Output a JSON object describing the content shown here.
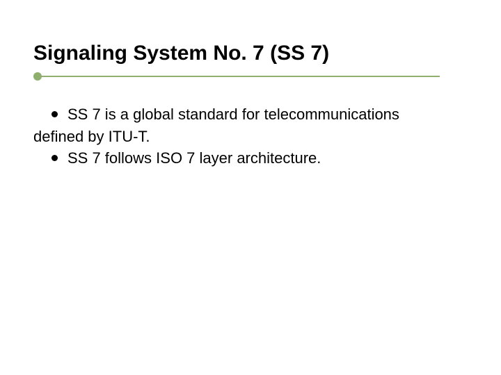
{
  "slide": {
    "title": "Signaling System No. 7 (SS 7)",
    "title_color": "#000000",
    "title_fontsize": 30,
    "underline_color": "#8faf6e",
    "background_color": "#ffffff",
    "bullets": [
      {
        "text_line1": "SS 7 is a global standard for telecommunications",
        "text_line2": "defined by ITU-T."
      },
      {
        "text_line1": "SS 7 follows ISO 7 layer architecture.",
        "text_line2": ""
      }
    ],
    "body_fontsize": 22,
    "body_color": "#000000",
    "bullet_marker_color": "#000000"
  }
}
